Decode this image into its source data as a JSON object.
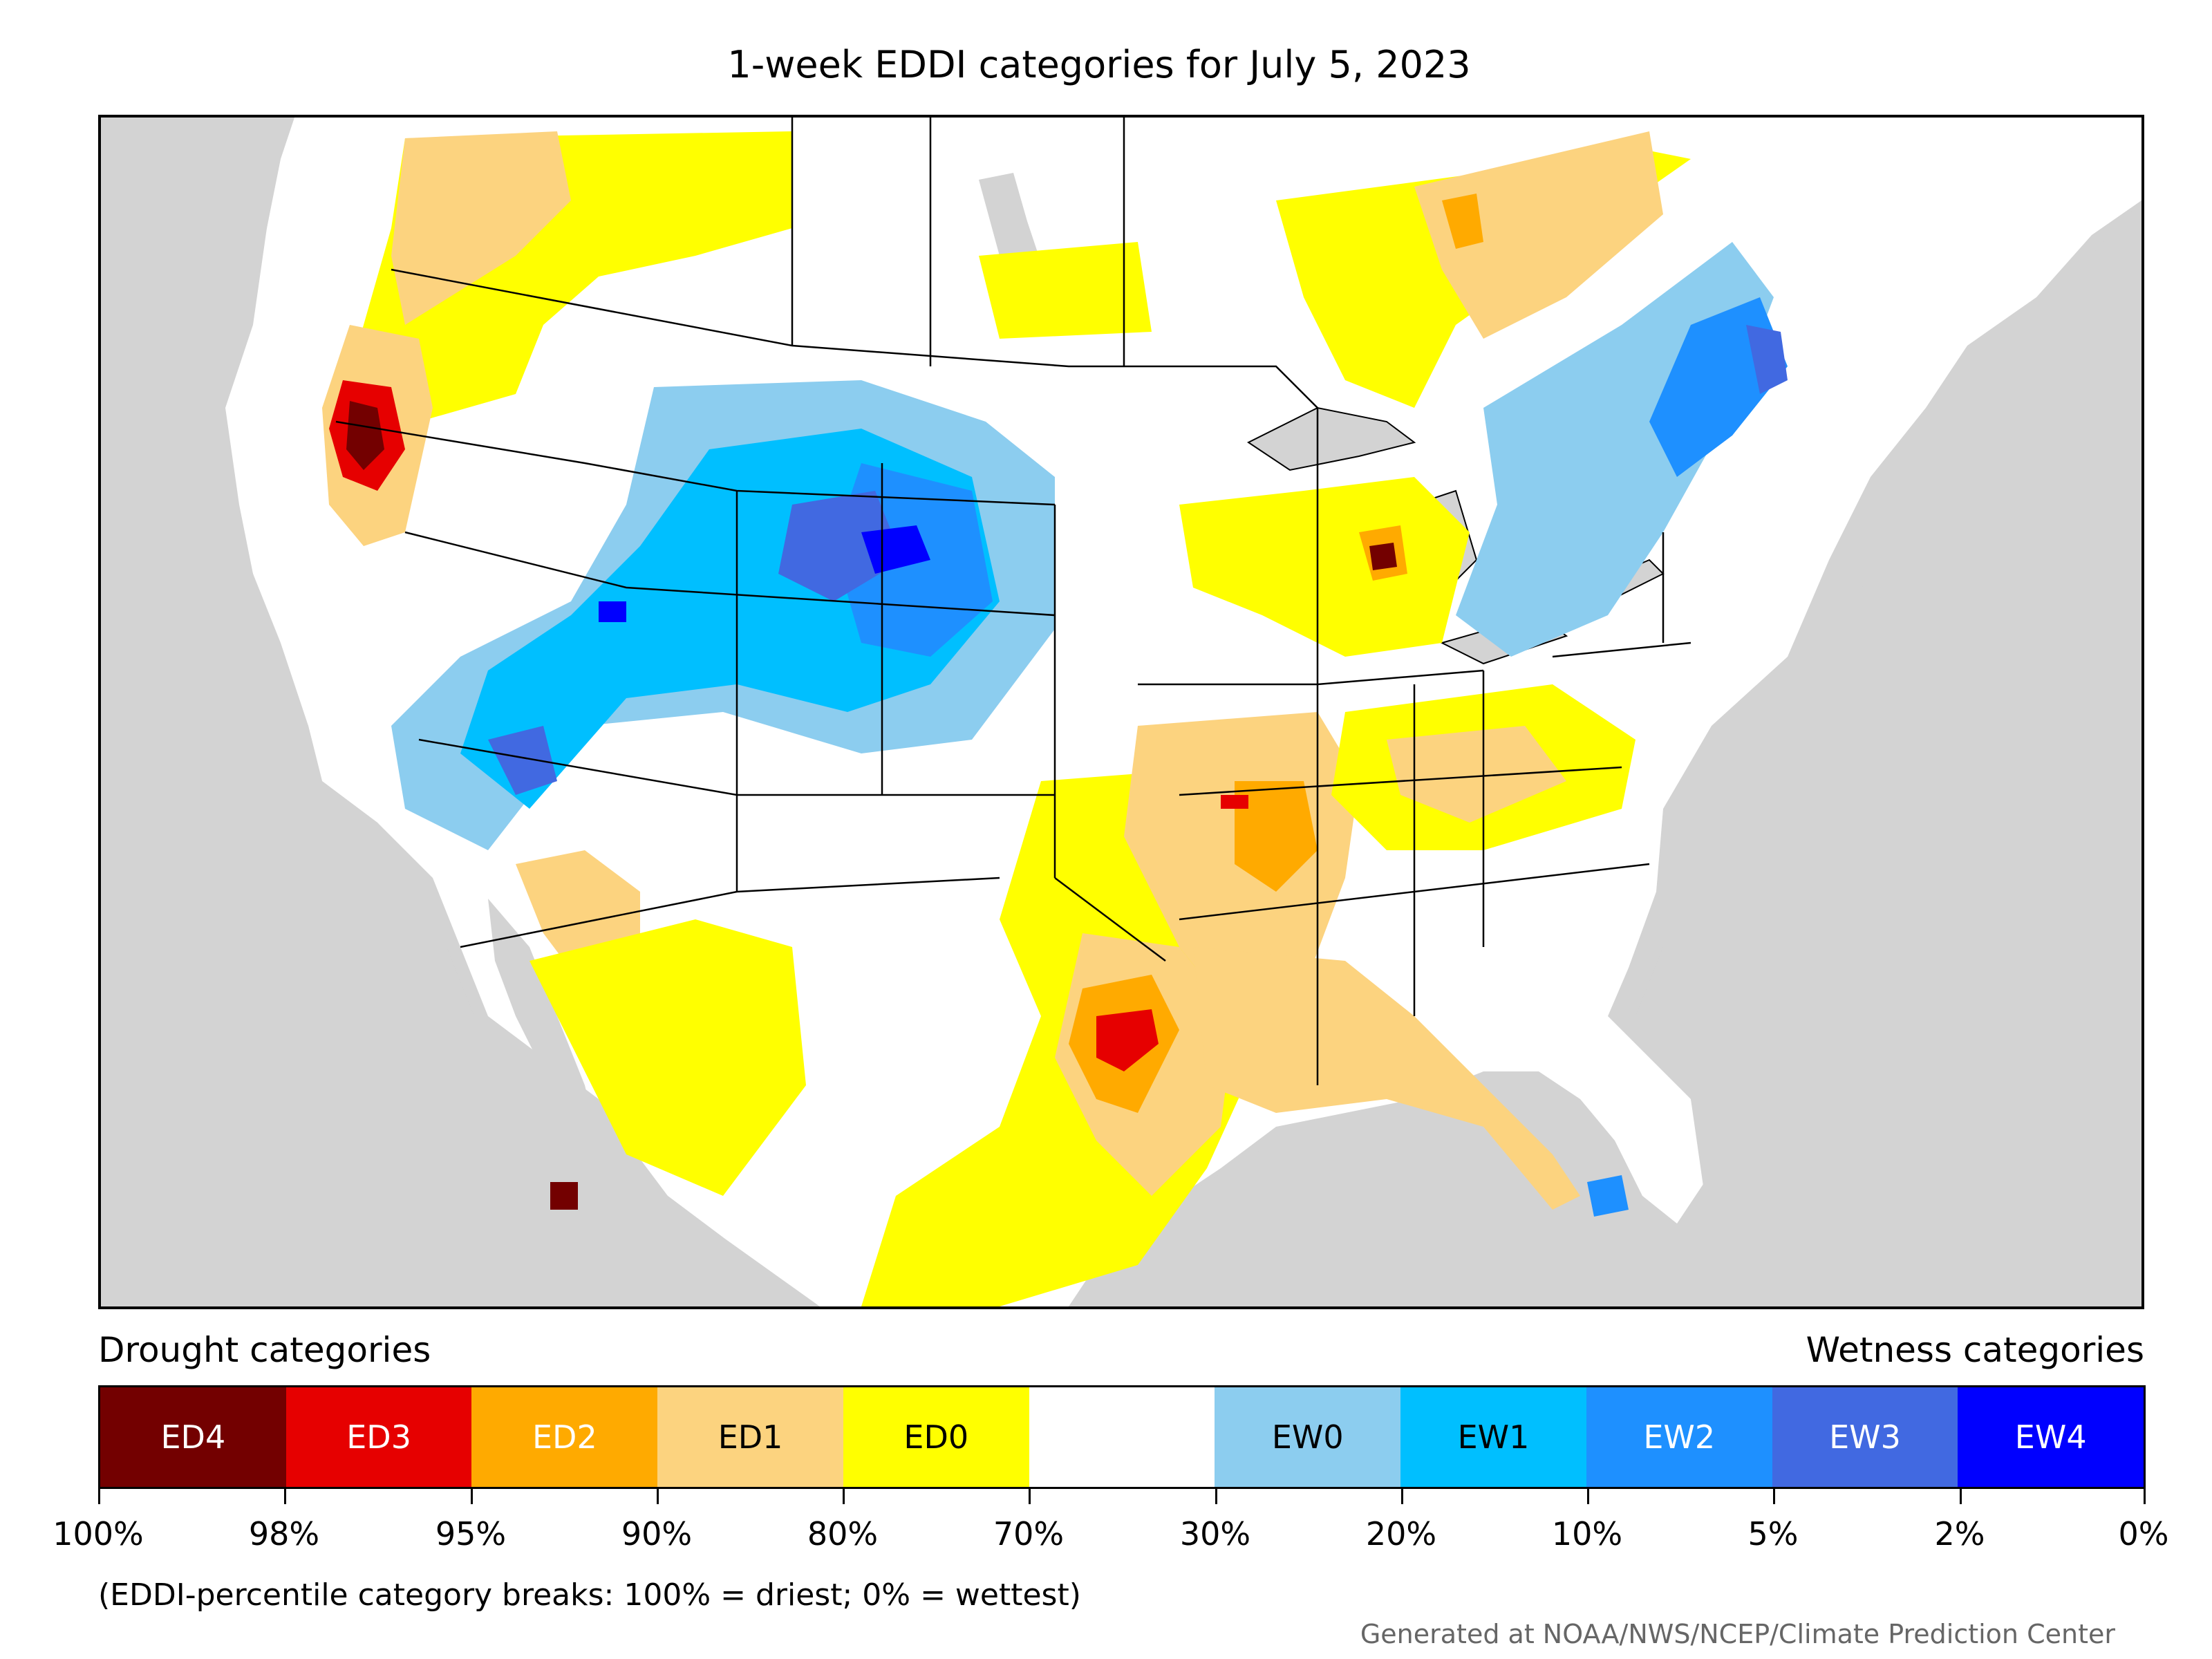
{
  "title": "1-week EDDI categories for July 5, 2023",
  "legend": {
    "left_heading": "Drought categories",
    "right_heading": "Wetness categories",
    "categories": [
      {
        "label": "ED4",
        "color": "#730000",
        "text_color": "#ffffff"
      },
      {
        "label": "ED3",
        "color": "#e60000",
        "text_color": "#ffffff"
      },
      {
        "label": "ED2",
        "color": "#ffaa00",
        "text_color": "#ffffff"
      },
      {
        "label": "ED1",
        "color": "#fcd37f",
        "text_color": "#000000"
      },
      {
        "label": "ED0",
        "color": "#ffff00",
        "text_color": "#000000"
      },
      {
        "label": "",
        "color": "#ffffff",
        "text_color": "#000000"
      },
      {
        "label": "EW0",
        "color": "#8ccdef",
        "text_color": "#000000"
      },
      {
        "label": "EW1",
        "color": "#00bfff",
        "text_color": "#000000"
      },
      {
        "label": "EW2",
        "color": "#1e90ff",
        "text_color": "#ffffff"
      },
      {
        "label": "EW3",
        "color": "#4169e1",
        "text_color": "#ffffff"
      },
      {
        "label": "EW4",
        "color": "#0000ff",
        "text_color": "#ffffff"
      }
    ],
    "breaks": [
      "100%",
      "98%",
      "95%",
      "90%",
      "80%",
      "70%",
      "30%",
      "20%",
      "10%",
      "5%",
      "2%",
      "0%"
    ]
  },
  "note": "(EDDI-percentile category breaks: 100% = driest; 0% = wettest)",
  "credit": "Generated at NOAA/NWS/NCEP/Climate Prediction Center",
  "colors": {
    "ocean": "#d3d3d3",
    "land": "#ffffff",
    "border": "#000000"
  }
}
